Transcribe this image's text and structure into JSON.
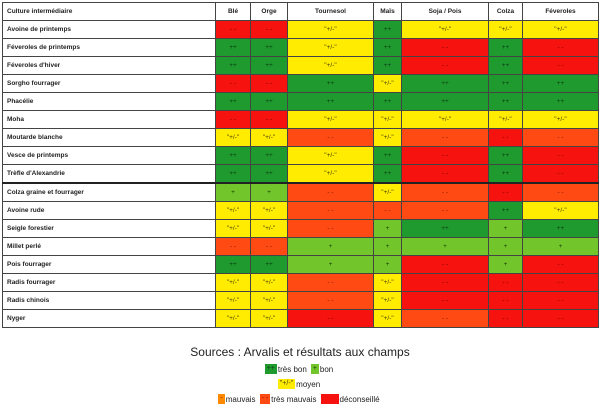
{
  "headers": [
    "Culture intermédiaire",
    "Blé",
    "Orge",
    "Tournesol",
    "Maïs",
    "Soja / Pois",
    "Colza",
    "Féveroles"
  ],
  "rows": [
    {
      "name": "Avoine de printemps",
      "cells": [
        {
          "c": "r",
          "t": "- -"
        },
        {
          "c": "r",
          "t": "- -"
        },
        {
          "c": "y",
          "t": "\"+/-\""
        },
        {
          "c": "g",
          "t": "++"
        },
        {
          "c": "y",
          "t": "\"+/-\""
        },
        {
          "c": "y",
          "t": "\"+/-\""
        },
        {
          "c": "y",
          "t": "\"+/-\""
        }
      ]
    },
    {
      "name": "Féveroles de printemps",
      "cells": [
        {
          "c": "g",
          "t": "++"
        },
        {
          "c": "g",
          "t": "++"
        },
        {
          "c": "y",
          "t": "\"+/-\""
        },
        {
          "c": "g",
          "t": "++"
        },
        {
          "c": "r",
          "t": "- -"
        },
        {
          "c": "g",
          "t": "++"
        },
        {
          "c": "r",
          "t": "- -"
        }
      ]
    },
    {
      "name": "Féveroles d'hiver",
      "cells": [
        {
          "c": "g",
          "t": "++"
        },
        {
          "c": "g",
          "t": "++"
        },
        {
          "c": "y",
          "t": "\"+/-\""
        },
        {
          "c": "g",
          "t": "++"
        },
        {
          "c": "r",
          "t": "- -"
        },
        {
          "c": "g",
          "t": "++"
        },
        {
          "c": "r",
          "t": "- -"
        }
      ]
    },
    {
      "name": "Sorgho fourrager",
      "cells": [
        {
          "c": "r",
          "t": "- -"
        },
        {
          "c": "r",
          "t": "- -"
        },
        {
          "c": "g",
          "t": "++"
        },
        {
          "c": "y",
          "t": "\"+/-\""
        },
        {
          "c": "g",
          "t": "++"
        },
        {
          "c": "g",
          "t": "++"
        },
        {
          "c": "g",
          "t": "++"
        }
      ]
    },
    {
      "name": "Phacélie",
      "cells": [
        {
          "c": "g",
          "t": "++"
        },
        {
          "c": "g",
          "t": "++"
        },
        {
          "c": "g",
          "t": "++"
        },
        {
          "c": "g",
          "t": "++"
        },
        {
          "c": "g",
          "t": "++"
        },
        {
          "c": "g",
          "t": "++"
        },
        {
          "c": "g",
          "t": "++"
        }
      ]
    },
    {
      "name": "Moha",
      "cells": [
        {
          "c": "r",
          "t": "- -"
        },
        {
          "c": "r",
          "t": "- -"
        },
        {
          "c": "y",
          "t": "\"+/-\""
        },
        {
          "c": "y",
          "t": "\"+/-\""
        },
        {
          "c": "y",
          "t": "\"+/-\""
        },
        {
          "c": "y",
          "t": "\"+/-\""
        },
        {
          "c": "y",
          "t": "\"+/-\""
        }
      ]
    },
    {
      "name": "Moutarde blanche",
      "cells": [
        {
          "c": "y",
          "t": "\"+/-\""
        },
        {
          "c": "y",
          "t": "\"+/-\""
        },
        {
          "c": "o",
          "t": "- -"
        },
        {
          "c": "y",
          "t": "\"+/-\""
        },
        {
          "c": "o",
          "t": "- -"
        },
        {
          "c": "r",
          "t": "- -"
        },
        {
          "c": "o",
          "t": "- -"
        }
      ]
    },
    {
      "name": "Vesce de printemps",
      "cells": [
        {
          "c": "g",
          "t": "++"
        },
        {
          "c": "g",
          "t": "++"
        },
        {
          "c": "y",
          "t": "\"+/-\""
        },
        {
          "c": "g",
          "t": "++"
        },
        {
          "c": "r",
          "t": "- -"
        },
        {
          "c": "g",
          "t": "++"
        },
        {
          "c": "r",
          "t": "- -"
        }
      ]
    },
    {
      "name": "Trèfle d'Alexandrie",
      "cells": [
        {
          "c": "g",
          "t": "++"
        },
        {
          "c": "g",
          "t": "++"
        },
        {
          "c": "y",
          "t": "\"+/-\""
        },
        {
          "c": "g",
          "t": "++"
        },
        {
          "c": "r",
          "t": "- -"
        },
        {
          "c": "g",
          "t": "++"
        },
        {
          "c": "r",
          "t": "- -"
        }
      ]
    },
    {
      "name": "Colza graine et fourrager",
      "thick": true,
      "cells": [
        {
          "c": "lg",
          "t": "+"
        },
        {
          "c": "lg",
          "t": "+"
        },
        {
          "c": "o",
          "t": "- -"
        },
        {
          "c": "y",
          "t": "\"+/-\""
        },
        {
          "c": "o",
          "t": "- -"
        },
        {
          "c": "r",
          "t": "- -"
        },
        {
          "c": "o",
          "t": "- -"
        }
      ]
    },
    {
      "name": "Avoine rude",
      "cells": [
        {
          "c": "y",
          "t": "\"+/-\""
        },
        {
          "c": "y",
          "t": "\"+/-\""
        },
        {
          "c": "o",
          "t": "- -"
        },
        {
          "c": "o",
          "t": "- -"
        },
        {
          "c": "o",
          "t": "- -"
        },
        {
          "c": "g",
          "t": "++"
        },
        {
          "c": "y",
          "t": "\"+/-\""
        }
      ]
    },
    {
      "name": "Seigle forestier",
      "cells": [
        {
          "c": "y",
          "t": "\"+/-\""
        },
        {
          "c": "y",
          "t": "\"+/-\""
        },
        {
          "c": "o",
          "t": "- -"
        },
        {
          "c": "lg",
          "t": "+"
        },
        {
          "c": "g",
          "t": "++"
        },
        {
          "c": "lg",
          "t": "+"
        },
        {
          "c": "g",
          "t": "++"
        }
      ]
    },
    {
      "name": "Millet perlé",
      "cells": [
        {
          "c": "o",
          "t": "- -"
        },
        {
          "c": "o",
          "t": "- -"
        },
        {
          "c": "lg",
          "t": "+"
        },
        {
          "c": "lg",
          "t": "+"
        },
        {
          "c": "lg",
          "t": "+"
        },
        {
          "c": "lg",
          "t": "+"
        },
        {
          "c": "lg",
          "t": "+"
        }
      ]
    },
    {
      "name": "Pois fourrager",
      "cells": [
        {
          "c": "g",
          "t": "++"
        },
        {
          "c": "g",
          "t": "++"
        },
        {
          "c": "lg",
          "t": "+"
        },
        {
          "c": "lg",
          "t": "+"
        },
        {
          "c": "r",
          "t": "- -"
        },
        {
          "c": "lg",
          "t": "+"
        },
        {
          "c": "r",
          "t": "- -"
        }
      ]
    },
    {
      "name": "Radis fourrager",
      "cells": [
        {
          "c": "y",
          "t": "\"+/-\""
        },
        {
          "c": "y",
          "t": "\"+/-\""
        },
        {
          "c": "o",
          "t": "- -"
        },
        {
          "c": "y",
          "t": "\"+/-\""
        },
        {
          "c": "r",
          "t": "- -"
        },
        {
          "c": "r",
          "t": "- -"
        },
        {
          "c": "r",
          "t": "- -"
        }
      ]
    },
    {
      "name": "Radis chinois",
      "cells": [
        {
          "c": "y",
          "t": "\"+/-\""
        },
        {
          "c": "y",
          "t": "\"+/-\""
        },
        {
          "c": "o",
          "t": "- -"
        },
        {
          "c": "y",
          "t": "\"+/-\""
        },
        {
          "c": "r",
          "t": "- -"
        },
        {
          "c": "r",
          "t": "- -"
        },
        {
          "c": "r",
          "t": "- -"
        }
      ]
    },
    {
      "name": "Nyger",
      "cells": [
        {
          "c": "y",
          "t": "\"+/-\""
        },
        {
          "c": "y",
          "t": "\"+/-\""
        },
        {
          "c": "r",
          "t": "- -"
        },
        {
          "c": "y",
          "t": "\"+/-\""
        },
        {
          "c": "o",
          "t": "- -"
        },
        {
          "c": "r",
          "t": "- -"
        },
        {
          "c": "r",
          "t": "- -"
        }
      ]
    }
  ],
  "sources": "Sources : Arvalis et résultats aux champs",
  "legend": {
    "line1": [
      {
        "c": "g",
        "sym": "++",
        "label": "très bon"
      },
      {
        "c": "lg",
        "sym": "+",
        "label": "bon"
      }
    ],
    "line2": [
      {
        "c": "y",
        "sym": "\"+/-\"",
        "label": "moyen"
      }
    ],
    "line3": [
      {
        "c": "m",
        "sym": "-",
        "label": "mauvais"
      },
      {
        "c": "o",
        "sym": "- -",
        "label": "très mauvais"
      },
      {
        "c": "r",
        "sym": "",
        "label": "déconseillé"
      }
    ]
  },
  "colors": {
    "g": "#1f9a2e",
    "lg": "#72c62b",
    "y": "#ffec00",
    "o": "#ff4a14",
    "r": "#f5120f",
    "m": "#ff8a00"
  }
}
